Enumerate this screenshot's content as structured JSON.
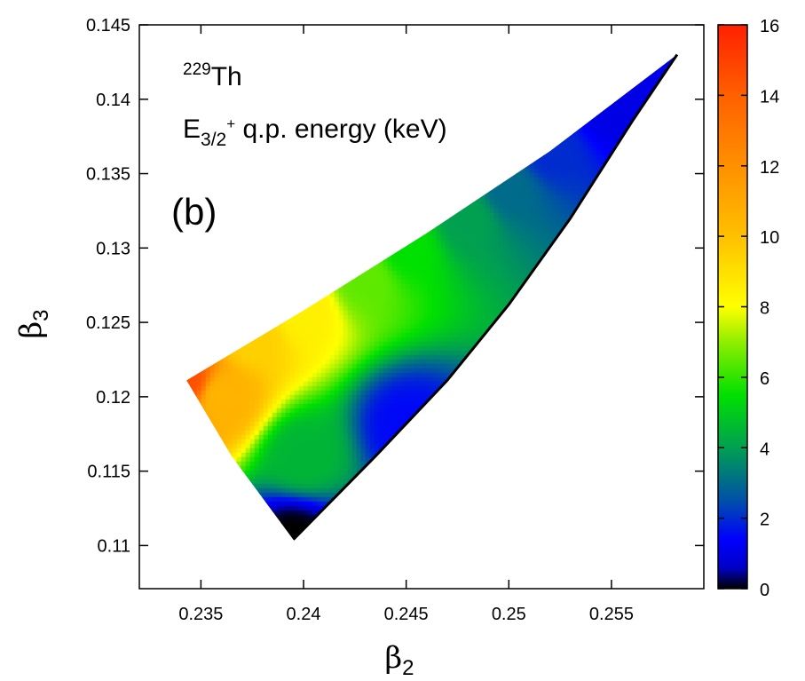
{
  "chart_data": {
    "type": "heatmap",
    "title": "",
    "xlabel": {
      "base": "β",
      "sub": "2"
    },
    "ylabel": {
      "base": "β",
      "sub": "3"
    },
    "xlim": [
      0.232,
      0.2595
    ],
    "ylim": [
      0.1071,
      0.145
    ],
    "xticks": [
      0.235,
      0.24,
      0.245,
      0.25,
      0.255
    ],
    "xtick_labels": [
      "0.235",
      "0.24",
      "0.245",
      "0.25",
      "0.255"
    ],
    "yticks": [
      0.11,
      0.115,
      0.12,
      0.125,
      0.13,
      0.135,
      0.14,
      0.145
    ],
    "ytick_labels": [
      "0.11",
      "0.115",
      "0.12",
      "0.125",
      "0.13",
      "0.135",
      "0.14",
      "0.145"
    ],
    "colorbar": {
      "min": 0,
      "max": 16,
      "ticks": [
        0,
        2,
        4,
        6,
        8,
        10,
        12,
        14,
        16
      ],
      "tick_labels": [
        "0",
        "2",
        "4",
        "6",
        "8",
        "10",
        "12",
        "14",
        "16"
      ],
      "stops": [
        {
          "value": 0,
          "color": "#000000"
        },
        {
          "value": 0.6,
          "color": "#0000c8"
        },
        {
          "value": 1.4,
          "color": "#0000ff"
        },
        {
          "value": 2.5,
          "color": "#0050a8"
        },
        {
          "value": 4,
          "color": "#00a050"
        },
        {
          "value": 5.5,
          "color": "#00e000"
        },
        {
          "value": 7,
          "color": "#90ee00"
        },
        {
          "value": 8,
          "color": "#ffff00"
        },
        {
          "value": 10,
          "color": "#ffc000"
        },
        {
          "value": 12,
          "color": "#ff9000"
        },
        {
          "value": 14,
          "color": "#ff6000"
        },
        {
          "value": 16,
          "color": "#ff2000"
        }
      ]
    },
    "region": {
      "description_points": [
        {
          "beta2": 0.2343,
          "beta3": 0.1211,
          "energy": 14.5
        },
        {
          "beta2": 0.2582,
          "beta3": 0.143,
          "energy": 0
        },
        {
          "beta2": 0.2395,
          "beta3": 0.1104,
          "energy": 0
        }
      ],
      "upper_edge": [
        [
          0.2343,
          0.1211
        ],
        [
          0.24,
          0.1258
        ],
        [
          0.246,
          0.131
        ],
        [
          0.252,
          0.1365
        ],
        [
          0.2582,
          0.143
        ]
      ],
      "lower_edge": [
        [
          0.2582,
          0.143
        ],
        [
          0.256,
          0.1385
        ],
        [
          0.253,
          0.132
        ],
        [
          0.25,
          0.1262
        ],
        [
          0.247,
          0.1211
        ],
        [
          0.2435,
          0.116
        ],
        [
          0.2395,
          0.1104
        ]
      ],
      "left_edge": [
        [
          0.2395,
          0.1104
        ],
        [
          0.2365,
          0.116
        ],
        [
          0.2343,
          0.1211
        ]
      ],
      "samples": [
        {
          "beta2": 0.2343,
          "beta3": 0.1211,
          "energy": 14.5
        },
        {
          "beta2": 0.236,
          "beta3": 0.12,
          "energy": 10.5
        },
        {
          "beta2": 0.2375,
          "beta3": 0.124,
          "energy": 9.5
        },
        {
          "beta2": 0.24,
          "beta3": 0.1258,
          "energy": 8.5
        },
        {
          "beta2": 0.24,
          "beta3": 0.116,
          "energy": 4.5
        },
        {
          "beta2": 0.243,
          "beta3": 0.128,
          "energy": 6.5
        },
        {
          "beta2": 0.245,
          "beta3": 0.13,
          "energy": 5.5
        },
        {
          "beta2": 0.245,
          "beta3": 0.118,
          "energy": 1.5
        },
        {
          "beta2": 0.248,
          "beta3": 0.132,
          "energy": 4.0
        },
        {
          "beta2": 0.25,
          "beta3": 0.134,
          "energy": 3.0
        },
        {
          "beta2": 0.252,
          "beta3": 0.1365,
          "energy": 2.0
        },
        {
          "beta2": 0.255,
          "beta3": 0.1395,
          "energy": 1.0
        },
        {
          "beta2": 0.2395,
          "beta3": 0.1105,
          "energy": 0
        }
      ]
    }
  },
  "annotations": {
    "nucleus_mass": "229",
    "nucleus_symbol": "Th",
    "energy_label_main": "E",
    "energy_label_sub": "3/2",
    "energy_label_sup": "+",
    "energy_label_rest": " q.p. energy (keV)",
    "panel_label": "(b)"
  }
}
